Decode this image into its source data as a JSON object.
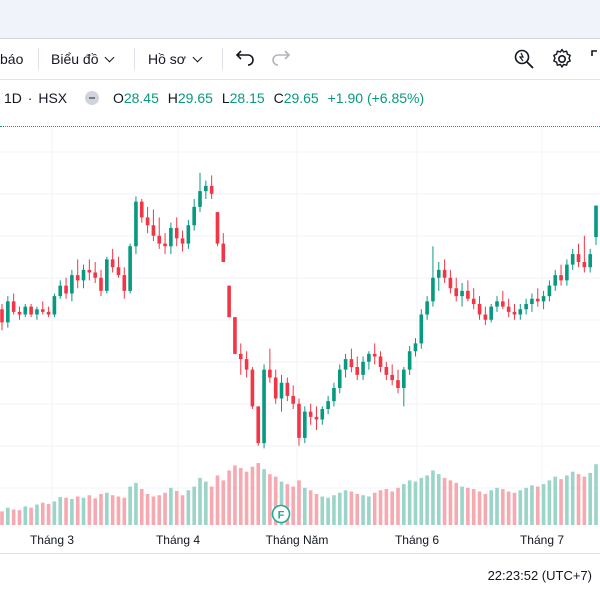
{
  "toolbar": {
    "alert_partial": "báo",
    "chart_type_label": "Biểu đồ",
    "profile_label": "Hồ sơ"
  },
  "legend": {
    "interval": "1D",
    "exchange": "HSX",
    "open_key": "O",
    "open": "28.45",
    "high_key": "H",
    "high": "29.65",
    "low_key": "L",
    "low": "28.15",
    "close_key": "C",
    "close": "29.65",
    "change": "+1.90 (+6.85%)",
    "up_color": "#089981",
    "down_color": "#f23645"
  },
  "x_axis": {
    "labels": [
      "Tháng 3",
      "Tháng 4",
      "Tháng Năm",
      "Tháng 6",
      "Tháng 7"
    ]
  },
  "marker": {
    "letter": "F"
  },
  "footer": {
    "time": "22:23:52 (UTC+7)"
  },
  "chart_data": {
    "type": "candlestick",
    "x_labels": [
      "Tháng 3",
      "Tháng 4",
      "Tháng Năm",
      "Tháng 6",
      "Tháng 7"
    ],
    "last": {
      "open": 28.45,
      "high": 29.65,
      "low": 28.15,
      "close": 29.65,
      "change": 1.9,
      "change_pct": 6.85
    },
    "ohlc": [
      [
        25.7,
        25.9,
        24.9,
        25.2
      ],
      [
        25.2,
        26.2,
        25.0,
        26.0
      ],
      [
        26.0,
        26.3,
        25.5,
        25.6
      ],
      [
        25.6,
        25.8,
        25.3,
        25.5
      ],
      [
        25.5,
        25.9,
        25.4,
        25.8
      ],
      [
        25.8,
        25.9,
        25.4,
        25.5
      ],
      [
        25.5,
        25.8,
        25.3,
        25.7
      ],
      [
        25.7,
        26.0,
        25.5,
        25.6
      ],
      [
        25.6,
        25.8,
        25.4,
        25.5
      ],
      [
        25.5,
        26.3,
        25.4,
        26.2
      ],
      [
        26.2,
        26.8,
        26.1,
        26.6
      ],
      [
        26.6,
        26.9,
        26.1,
        26.3
      ],
      [
        26.3,
        27.2,
        26.0,
        27.0
      ],
      [
        27.0,
        27.6,
        26.5,
        26.8
      ],
      [
        26.8,
        27.4,
        26.5,
        27.2
      ],
      [
        27.2,
        27.6,
        26.8,
        27.1
      ],
      [
        27.1,
        27.5,
        26.7,
        26.9
      ],
      [
        26.9,
        27.2,
        26.2,
        26.4
      ],
      [
        26.4,
        27.7,
        26.3,
        27.6
      ],
      [
        27.6,
        28.0,
        27.1,
        27.3
      ],
      [
        27.3,
        27.7,
        26.9,
        27.0
      ],
      [
        27.0,
        27.3,
        26.1,
        26.4
      ],
      [
        26.4,
        28.2,
        26.3,
        28.1
      ],
      [
        28.1,
        30.0,
        27.8,
        29.8
      ],
      [
        29.8,
        29.9,
        29.0,
        29.2
      ],
      [
        29.2,
        29.6,
        28.6,
        28.9
      ],
      [
        28.9,
        29.5,
        28.3,
        28.5
      ],
      [
        28.5,
        29.2,
        28.0,
        28.2
      ],
      [
        28.2,
        28.6,
        27.8,
        28.1
      ],
      [
        28.1,
        29.0,
        27.8,
        28.8
      ],
      [
        28.8,
        29.2,
        28.1,
        28.4
      ],
      [
        28.4,
        28.7,
        27.9,
        28.2
      ],
      [
        28.2,
        29.1,
        28.0,
        28.9
      ],
      [
        28.9,
        29.9,
        28.7,
        29.6
      ],
      [
        29.6,
        30.9,
        29.4,
        30.2
      ],
      [
        30.2,
        30.6,
        29.9,
        30.4
      ],
      [
        30.4,
        30.8,
        29.9,
        30.1
      ],
      [
        29.4,
        29.4,
        28.1,
        28.2
      ],
      [
        28.2,
        28.6,
        27.5,
        27.5
      ],
      [
        26.6,
        26.6,
        25.4,
        25.4
      ],
      [
        25.4,
        25.4,
        24.0,
        24.0
      ],
      [
        24.0,
        24.4,
        23.2,
        23.8
      ],
      [
        23.8,
        24.1,
        23.1,
        23.4
      ],
      [
        23.4,
        23.5,
        21.9,
        22.0
      ],
      [
        22.0,
        22.0,
        20.5,
        20.6
      ],
      [
        20.6,
        23.6,
        20.4,
        23.4
      ],
      [
        23.4,
        24.2,
        22.9,
        23.1
      ],
      [
        23.1,
        23.4,
        22.1,
        22.3
      ],
      [
        22.3,
        23.2,
        21.8,
        22.9
      ],
      [
        22.9,
        23.1,
        22.2,
        22.4
      ],
      [
        22.4,
        22.8,
        21.9,
        22.1
      ],
      [
        22.1,
        22.3,
        20.5,
        20.8
      ],
      [
        20.8,
        22.0,
        20.6,
        21.8
      ],
      [
        21.8,
        22.1,
        21.3,
        21.6
      ],
      [
        21.6,
        22.0,
        21.1,
        21.5
      ],
      [
        21.5,
        22.0,
        21.3,
        21.9
      ],
      [
        21.9,
        22.4,
        21.7,
        22.2
      ],
      [
        22.2,
        22.9,
        22.0,
        22.7
      ],
      [
        22.7,
        23.6,
        22.5,
        23.4
      ],
      [
        23.4,
        24.0,
        23.1,
        23.8
      ],
      [
        23.8,
        24.2,
        23.3,
        23.5
      ],
      [
        23.5,
        23.9,
        23.0,
        23.2
      ],
      [
        23.2,
        23.9,
        23.0,
        23.7
      ],
      [
        23.7,
        24.1,
        23.4,
        24.0
      ],
      [
        24.0,
        24.4,
        23.6,
        23.9
      ],
      [
        23.9,
        24.1,
        23.3,
        23.5
      ],
      [
        23.5,
        23.7,
        23.0,
        23.2
      ],
      [
        23.2,
        23.6,
        22.8,
        23.0
      ],
      [
        23.0,
        23.4,
        22.5,
        22.7
      ],
      [
        22.7,
        23.5,
        22.0,
        23.4
      ],
      [
        23.4,
        24.3,
        23.2,
        24.1
      ],
      [
        24.1,
        24.6,
        23.9,
        24.4
      ],
      [
        24.4,
        25.7,
        24.2,
        25.5
      ],
      [
        25.5,
        26.2,
        25.3,
        26.0
      ],
      [
        26.0,
        28.1,
        25.8,
        26.9
      ],
      [
        26.9,
        27.5,
        26.4,
        27.2
      ],
      [
        27.2,
        27.6,
        26.7,
        26.9
      ],
      [
        26.9,
        27.2,
        26.3,
        26.5
      ],
      [
        26.5,
        26.9,
        26.0,
        26.2
      ],
      [
        26.2,
        26.7,
        25.8,
        26.4
      ],
      [
        26.4,
        26.8,
        26.0,
        26.1
      ],
      [
        26.1,
        26.5,
        25.7,
        25.9
      ],
      [
        25.9,
        26.2,
        25.3,
        25.5
      ],
      [
        25.5,
        25.8,
        25.1,
        25.3
      ],
      [
        25.3,
        25.9,
        25.2,
        25.8
      ],
      [
        25.8,
        26.2,
        25.6,
        26.0
      ],
      [
        26.0,
        26.4,
        25.7,
        25.8
      ],
      [
        25.8,
        26.1,
        25.4,
        25.6
      ],
      [
        25.6,
        25.9,
        25.3,
        25.5
      ],
      [
        25.5,
        25.9,
        25.3,
        25.7
      ],
      [
        25.7,
        26.1,
        25.5,
        25.9
      ],
      [
        25.9,
        26.3,
        25.6,
        26.1
      ],
      [
        26.1,
        26.5,
        25.8,
        26.0
      ],
      [
        26.0,
        26.4,
        25.7,
        26.2
      ],
      [
        26.2,
        26.8,
        26.0,
        26.6
      ],
      [
        26.6,
        27.2,
        26.4,
        27.0
      ],
      [
        27.0,
        27.4,
        26.6,
        26.8
      ],
      [
        26.8,
        27.6,
        26.6,
        27.4
      ],
      [
        27.4,
        28.0,
        27.2,
        27.8
      ],
      [
        27.8,
        28.2,
        27.3,
        27.5
      ],
      [
        27.5,
        28.5,
        27.1,
        27.3
      ],
      [
        27.3,
        28.0,
        27.1,
        27.8
      ],
      [
        28.45,
        29.65,
        28.15,
        29.65
      ]
    ],
    "volume": [
      0.22,
      0.28,
      0.25,
      0.24,
      0.3,
      0.28,
      0.33,
      0.36,
      0.34,
      0.38,
      0.45,
      0.44,
      0.42,
      0.46,
      0.44,
      0.48,
      0.43,
      0.5,
      0.52,
      0.48,
      0.46,
      0.44,
      0.62,
      0.68,
      0.58,
      0.5,
      0.46,
      0.48,
      0.52,
      0.6,
      0.55,
      0.48,
      0.56,
      0.62,
      0.76,
      0.7,
      0.62,
      0.8,
      0.72,
      0.88,
      0.96,
      0.92,
      0.86,
      0.94,
      1.0,
      0.9,
      0.82,
      0.78,
      0.7,
      0.66,
      0.62,
      0.72,
      0.6,
      0.56,
      0.5,
      0.46,
      0.44,
      0.48,
      0.52,
      0.56,
      0.54,
      0.5,
      0.48,
      0.46,
      0.52,
      0.56,
      0.58,
      0.54,
      0.6,
      0.66,
      0.72,
      0.7,
      0.76,
      0.8,
      0.88,
      0.82,
      0.76,
      0.72,
      0.68,
      0.62,
      0.6,
      0.58,
      0.54,
      0.5,
      0.56,
      0.6,
      0.58,
      0.54,
      0.52,
      0.56,
      0.6,
      0.64,
      0.62,
      0.66,
      0.72,
      0.78,
      0.74,
      0.8,
      0.86,
      0.82,
      0.78,
      0.84,
      0.98
    ],
    "grid": true,
    "currency_axis": "hidden"
  }
}
